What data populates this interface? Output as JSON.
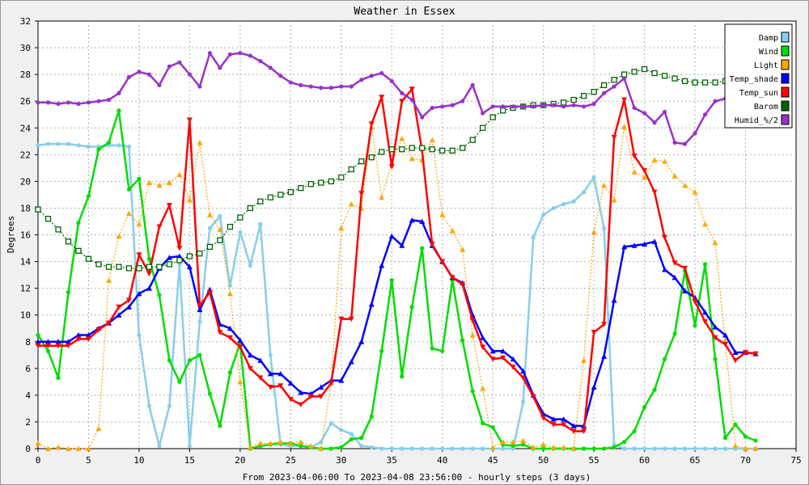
{
  "chart_data": {
    "type": "line",
    "title": "Weather in Essex",
    "xlabel": "From 2023-04-06:00 To 2023-04-08 23:56:00 - hourly steps (3 days)",
    "ylabel": "Degrees",
    "xlim": [
      0,
      75
    ],
    "ylim": [
      0,
      32
    ],
    "xticks": [
      0,
      5,
      10,
      15,
      20,
      25,
      30,
      35,
      40,
      45,
      50,
      55,
      60,
      65,
      70,
      75
    ],
    "yticks": [
      0,
      2,
      4,
      6,
      8,
      10,
      12,
      14,
      16,
      18,
      20,
      22,
      24,
      26,
      28,
      30,
      32
    ],
    "grid": true,
    "legend_position": "top-right",
    "series": [
      {
        "name": "Damp",
        "color": "#87ceeb",
        "marker": "circle",
        "dash": false,
        "width": 2.5,
        "values": [
          22.7,
          22.8,
          22.8,
          22.8,
          22.7,
          22.6,
          22.6,
          22.7,
          22.7,
          22.6,
          8.5,
          3.2,
          0.2,
          3.2,
          13.8,
          0.2,
          9.5,
          16.5,
          17.4,
          12.2,
          16.2,
          13.7,
          16.8,
          7.0,
          0.3,
          0.2,
          0.2,
          0.1,
          0.5,
          1.9,
          1.4,
          1.1,
          0.2,
          0.1,
          0,
          0,
          0,
          0,
          0,
          0,
          0,
          0,
          0,
          0,
          0,
          0,
          0,
          0,
          3.5,
          15.8,
          17.5,
          18.0,
          18.3,
          18.5,
          19.2,
          20.3,
          16.5,
          0.3,
          0,
          0,
          0,
          0,
          0,
          0,
          0,
          0,
          0,
          0,
          0,
          0,
          0,
          0
        ]
      },
      {
        "name": "Wind",
        "color": "#00dd00",
        "marker": "circle",
        "dash": false,
        "width": 2.5,
        "values": [
          8.5,
          7.3,
          5.3,
          11.7,
          16.9,
          18.9,
          22.4,
          22.9,
          25.3,
          19.4,
          20.2,
          14.2,
          11.5,
          6.6,
          5.0,
          6.6,
          7.0,
          4.1,
          1.7,
          5.7,
          7.9,
          0,
          0.2,
          0.3,
          0.4,
          0.4,
          0.2,
          0.1,
          0,
          0,
          0.1,
          0.7,
          0.8,
          2.4,
          7.3,
          12.6,
          5.4,
          10.6,
          15.0,
          7.5,
          7.3,
          12.6,
          8.1,
          4.3,
          1.9,
          1.6,
          0.3,
          0.2,
          0.3,
          0,
          0,
          0,
          0,
          0,
          0,
          0,
          0,
          0.1,
          0.5,
          1.3,
          3.1,
          4.4,
          6.7,
          8.6,
          13.3,
          9.2,
          13.8,
          6.7,
          0.8,
          1.8,
          0.9,
          0.6
        ]
      },
      {
        "name": "Light",
        "color": "#ffa500",
        "marker": "triangle-up",
        "dash": true,
        "width": 1.2,
        "values": [
          0.4,
          0,
          0.1,
          0,
          0,
          0,
          1.5,
          12.6,
          15.9,
          17.6,
          16.8,
          19.9,
          19.7,
          19.9,
          20.5,
          18.6,
          22.9,
          17.5,
          16.4,
          11.6,
          5.0,
          0.1,
          0.4,
          0.4,
          0.5,
          0.4,
          0.5,
          0.2,
          0,
          4.9,
          16.5,
          18.3,
          18.0,
          24.1,
          18.8,
          21.4,
          23.2,
          21.7,
          21.6,
          23.1,
          17.5,
          16.3,
          14.9,
          8.5,
          4.5,
          0.1,
          0.5,
          0.5,
          0.6,
          0.1,
          0.3,
          0.1,
          0.1,
          0,
          6.6,
          16.2,
          19.7,
          18.6,
          24.1,
          20.7,
          20.3,
          21.6,
          21.5,
          20.4,
          19.7,
          19.2,
          16.8,
          15.4,
          8.1,
          0.2,
          0,
          0
        ]
      },
      {
        "name": "Temp_shade",
        "color": "#0000ff",
        "marker": "triangle-up",
        "dash": false,
        "width": 2.5,
        "values": [
          8.0,
          8.0,
          8.0,
          8.0,
          8.5,
          8.5,
          9.0,
          9.4,
          10.0,
          10.6,
          11.6,
          12.0,
          13.5,
          14.3,
          14.4,
          13.6,
          10.4,
          11.9,
          9.3,
          9.0,
          8.1,
          7.0,
          6.6,
          5.6,
          5.6,
          4.9,
          4.2,
          4.1,
          4.6,
          5.1,
          5.1,
          6.5,
          8.0,
          10.8,
          13.7,
          15.9,
          15.2,
          17.1,
          17.0,
          15.2,
          14.0,
          12.8,
          12.4,
          10.0,
          8.3,
          7.3,
          7.3,
          6.7,
          5.8,
          4.0,
          2.6,
          2.2,
          2.2,
          1.7,
          1.7,
          4.6,
          6.9,
          11.1,
          15.1,
          15.2,
          15.3,
          15.5,
          13.4,
          12.8,
          11.8,
          11.3,
          10.2,
          9.1,
          8.5,
          7.2,
          7.2,
          7.1
        ]
      },
      {
        "name": "Temp_sun",
        "color": "#ff0000",
        "marker": "triangle-down",
        "dash": false,
        "width": 2.5,
        "values": [
          7.7,
          7.7,
          7.7,
          7.7,
          8.2,
          8.2,
          8.9,
          9.4,
          10.6,
          11.1,
          14.5,
          13.1,
          16.6,
          18.2,
          15.0,
          24.6,
          10.7,
          11.7,
          8.7,
          8.3,
          7.6,
          6.0,
          5.3,
          4.6,
          4.7,
          3.7,
          3.3,
          3.9,
          3.9,
          4.9,
          9.7,
          9.7,
          19.1,
          24.3,
          26.3,
          21.1,
          26.0,
          26.9,
          22.3,
          15.3,
          14.0,
          12.8,
          12.3,
          9.6,
          7.6,
          6.7,
          6.8,
          6.1,
          5.3,
          3.9,
          2.3,
          1.8,
          1.8,
          1.3,
          1.3,
          8.7,
          9.3,
          23.3,
          26.1,
          21.9,
          20.8,
          19.2,
          15.8,
          13.9,
          13.5,
          11.0,
          9.5,
          8.3,
          7.8,
          6.6,
          7.2,
          7.1
        ]
      },
      {
        "name": "Barom",
        "color": "#006400",
        "marker": "square",
        "dash": true,
        "width": 1.2,
        "values": [
          17.9,
          17.2,
          16.4,
          15.5,
          14.8,
          14.2,
          13.8,
          13.6,
          13.6,
          13.5,
          13.5,
          13.6,
          13.6,
          13.8,
          14.1,
          14.4,
          14.6,
          15.1,
          15.6,
          16.6,
          17.3,
          18.0,
          18.5,
          18.8,
          19.0,
          19.2,
          19.5,
          19.8,
          19.9,
          20.0,
          20.3,
          20.9,
          21.5,
          21.8,
          22.2,
          22.4,
          22.4,
          22.5,
          22.5,
          22.4,
          22.3,
          22.3,
          22.5,
          23.1,
          24.0,
          24.8,
          25.3,
          25.5,
          25.6,
          25.7,
          25.7,
          25.8,
          25.9,
          26.1,
          26.4,
          26.7,
          27.2,
          27.6,
          28.0,
          28.2,
          28.4,
          28.1,
          27.9,
          27.7,
          27.5,
          27.4,
          27.4,
          27.4,
          27.5,
          27.5,
          27.5,
          27.5
        ]
      },
      {
        "name": "Humid_%/2",
        "color": "#9932cc",
        "marker": "circle",
        "dash": false,
        "width": 2.5,
        "values": [
          25.9,
          25.9,
          25.8,
          25.9,
          25.8,
          25.9,
          26.0,
          26.1,
          26.6,
          27.8,
          28.2,
          28.0,
          27.2,
          28.6,
          28.9,
          28.0,
          27.1,
          29.6,
          28.5,
          29.5,
          29.6,
          29.4,
          29.0,
          28.5,
          27.9,
          27.4,
          27.2,
          27.1,
          27.0,
          27.0,
          27.1,
          27.1,
          27.6,
          27.9,
          28.1,
          27.5,
          26.6,
          26.1,
          24.8,
          25.5,
          25.6,
          25.7,
          26.0,
          27.2,
          25.1,
          25.6,
          25.6,
          25.6,
          25.6,
          25.6,
          25.7,
          25.7,
          25.6,
          25.7,
          25.6,
          25.8,
          26.6,
          27.1,
          27.7,
          25.5,
          25.1,
          24.4,
          25.2,
          22.9,
          22.8,
          23.6,
          25.0,
          26.0,
          26.2,
          26.2,
          26.2,
          26.2
        ]
      }
    ]
  }
}
